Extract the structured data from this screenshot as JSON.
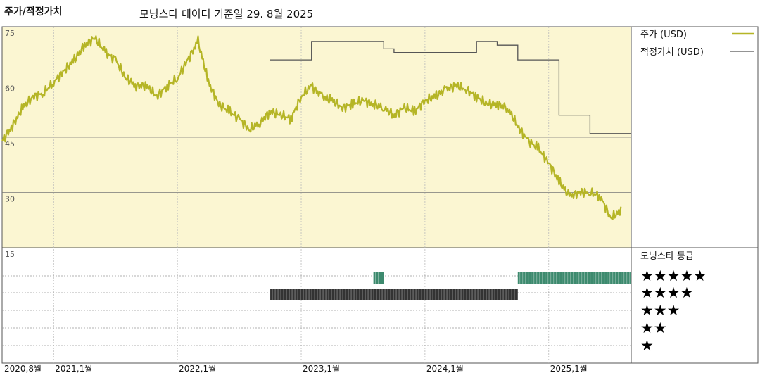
{
  "header": {
    "left_title": "주가/적정가치",
    "source": "모닝스타 데이터 기준일 29. 8월 2025"
  },
  "legend": {
    "price_label": "주가 (USD)",
    "fair_label": "적정가치 (USD)",
    "rating_title": "모닝스타 등급"
  },
  "colors": {
    "price": "#b5b526",
    "fair": "#555555",
    "chart_bg": "#fbf6d2",
    "rating_5": "#3d8a6e",
    "rating_4": "#333333"
  },
  "chart_data": {
    "type": "line",
    "title": "주가/적정가치",
    "ylim": [
      15,
      75
    ],
    "y_ticks": [
      75,
      60,
      45,
      30,
      15
    ],
    "x_ticks": [
      {
        "label": "2020,8월",
        "date": "2020-08"
      },
      {
        "label": "2021,1월",
        "date": "2021-01"
      },
      {
        "label": "2022,1월",
        "date": "2022-01"
      },
      {
        "label": "2023,1월",
        "date": "2023-01"
      },
      {
        "label": "2024,1월",
        "date": "2024-01"
      },
      {
        "label": "2025,1월",
        "date": "2025-01"
      }
    ],
    "series": [
      {
        "name": "주가 (USD)",
        "x": [
          "2020-08",
          "2020-09",
          "2020-10",
          "2020-11",
          "2020-12",
          "2021-01",
          "2021-02",
          "2021-03",
          "2021-04",
          "2021-05",
          "2021-06",
          "2021-07",
          "2021-08",
          "2021-09",
          "2021-10",
          "2021-11",
          "2021-12",
          "2022-01",
          "2022-02",
          "2022-03",
          "2022-04",
          "2022-05",
          "2022-06",
          "2022-07",
          "2022-08",
          "2022-09",
          "2022-10",
          "2022-11",
          "2022-12",
          "2023-01",
          "2023-02",
          "2023-03",
          "2023-04",
          "2023-05",
          "2023-06",
          "2023-07",
          "2023-08",
          "2023-09",
          "2023-10",
          "2023-11",
          "2023-12",
          "2024-01",
          "2024-02",
          "2024-03",
          "2024-04",
          "2024-05",
          "2024-06",
          "2024-07",
          "2024-08",
          "2024-09",
          "2024-10",
          "2024-11",
          "2024-12",
          "2025-01",
          "2025-02",
          "2025-03",
          "2025-04",
          "2025-05",
          "2025-06",
          "2025-07",
          "2025-08"
        ],
        "y": [
          44,
          48,
          53,
          56,
          57,
          60,
          63,
          66,
          70,
          72,
          68,
          66,
          61,
          59,
          59,
          56,
          59,
          61,
          66,
          71,
          60,
          54,
          52,
          50,
          47,
          49,
          52,
          51,
          50,
          56,
          59,
          56,
          55,
          53,
          54,
          55,
          54,
          53,
          51,
          53,
          52,
          55,
          56,
          58,
          59,
          58,
          56,
          54,
          54,
          53,
          48,
          44,
          42,
          38,
          33,
          29,
          30,
          30,
          29,
          23,
          25
        ]
      },
      {
        "name": "적정가치 (USD)",
        "x": [
          "2022-10",
          "2022-12",
          "2023-01",
          "2023-02",
          "2023-08",
          "2023-09",
          "2023-10",
          "2024-05",
          "2024-06",
          "2024-07",
          "2024-08",
          "2024-09",
          "2024-10",
          "2024-11",
          "2025-01",
          "2025-02",
          "2025-03",
          "2025-05",
          "2025-06",
          "2025-08"
        ],
        "y": [
          66,
          66,
          66,
          71,
          71,
          69,
          68,
          68,
          71,
          71,
          70,
          70,
          66,
          66,
          66,
          51,
          51,
          46,
          46,
          46
        ]
      }
    ],
    "rating_rows": [
      "★★★★★",
      "★★★★",
      "★★★",
      "★★",
      "★"
    ],
    "ratings": [
      {
        "stars": 5,
        "from": "2023-08",
        "to": "2023-08"
      },
      {
        "stars": 4,
        "from": "2022-10",
        "to": "2024-09"
      },
      {
        "stars": 5,
        "from": "2024-10",
        "to": "2025-08"
      }
    ]
  }
}
